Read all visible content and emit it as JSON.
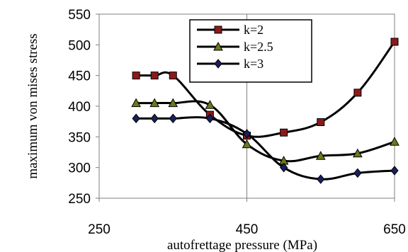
{
  "chart_data": {
    "type": "line",
    "xlabel": "autofrettage pressure (MPa)",
    "ylabel": "maximum von mises stress",
    "xlim": [
      250,
      650
    ],
    "ylim": [
      250,
      550
    ],
    "x_ticks": [
      "250",
      "450",
      "650"
    ],
    "y_ticks": [
      "250",
      "300",
      "350",
      "400",
      "450",
      "500",
      "550"
    ],
    "grid": "vertical",
    "legend_position": "top-center",
    "series": [
      {
        "name": "k=2",
        "marker": "square",
        "marker_color": "#8b1a1a",
        "x": [
          300,
          325,
          350,
          400,
          450,
          500,
          550,
          600,
          650
        ],
        "y": [
          450,
          450,
          450,
          386,
          352,
          357,
          374,
          422,
          505
        ]
      },
      {
        "name": "k=2.5",
        "marker": "triangle",
        "marker_color": "#6b7a1a",
        "x": [
          300,
          325,
          350,
          400,
          450,
          500,
          550,
          600,
          650
        ],
        "y": [
          405,
          405,
          405,
          402,
          338,
          311,
          319,
          323,
          342
        ]
      },
      {
        "name": "k=3",
        "marker": "diamond",
        "marker_color": "#1a1f5c",
        "x": [
          300,
          325,
          350,
          400,
          450,
          500,
          550,
          600,
          650
        ],
        "y": [
          380,
          380,
          380,
          380,
          355,
          300,
          281,
          291,
          295
        ]
      }
    ]
  }
}
